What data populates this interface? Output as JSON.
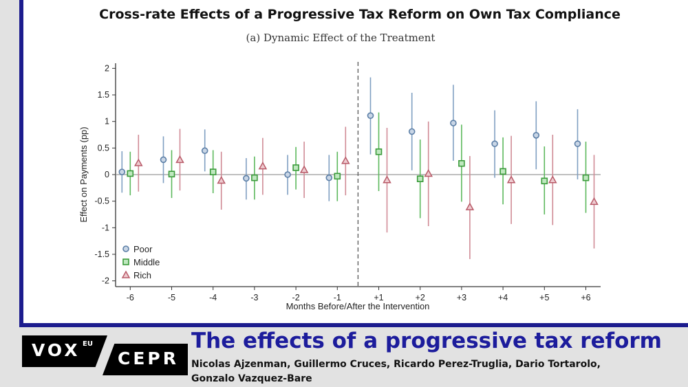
{
  "header": {
    "title": "Cross-rate Effects of a Progressive Tax Reform on Own Tax Compliance",
    "subtitle": "(a) Dynamic Effect of the Treatment"
  },
  "footer": {
    "logo_vox": "VOX",
    "logo_eu": "EU",
    "logo_cepr": "CEPR",
    "title": "The effects of a progressive tax reform",
    "authors": "Nicolas Ajzenman, Guillermo Cruces, Ricardo Perez-Truglia, Dario Tortarolo, Gonzalo Vazquez-Bare"
  },
  "colors": {
    "border": "#1c1c8e",
    "footer_title": "#1c1c9c",
    "poor": "#5b7ea6",
    "middle": "#3a9a3a",
    "rich": "#b85a68"
  },
  "chart_data": {
    "type": "scatter",
    "title": "Cross-rate Effects of a Progressive Tax Reform on Own Tax Compliance",
    "subtitle": "(a) Dynamic Effect of the Treatment",
    "xlabel": "Months Before/After the Intervention",
    "ylabel": "Effect on Payments (pp)",
    "categories": [
      "-6",
      "-5",
      "-4",
      "-3",
      "-2",
      "-1",
      "+1",
      "+2",
      "+3",
      "+4",
      "+5",
      "+6"
    ],
    "yticks": [
      "2",
      "1.5",
      "1",
      "0.5",
      "0",
      "-0.5",
      "-1",
      "-1.5",
      "-2"
    ],
    "ylim": [
      -2,
      2
    ],
    "reference_line_y": 0,
    "intervention_line": "between -1 and +1",
    "legend_position": "bottom-left",
    "series": [
      {
        "name": "Poor",
        "marker": "circle",
        "values": [
          0.05,
          0.28,
          0.45,
          -0.07,
          0.0,
          -0.06,
          1.11,
          0.81,
          0.97,
          0.58,
          0.74,
          0.58
        ],
        "ci_high": [
          0.44,
          0.72,
          0.85,
          0.31,
          0.37,
          0.37,
          1.83,
          1.54,
          1.69,
          1.21,
          1.38,
          1.23
        ],
        "ci_low": [
          -0.34,
          -0.16,
          0.06,
          -0.47,
          -0.38,
          -0.5,
          0.38,
          0.08,
          0.26,
          -0.06,
          0.1,
          -0.09
        ]
      },
      {
        "name": "Middle",
        "marker": "square",
        "values": [
          0.02,
          0.01,
          0.05,
          -0.06,
          0.13,
          -0.03,
          0.43,
          -0.08,
          0.21,
          0.06,
          -0.12,
          -0.06
        ],
        "ci_high": [
          0.43,
          0.46,
          0.46,
          0.34,
          0.52,
          0.43,
          1.17,
          0.66,
          0.94,
          0.7,
          0.53,
          0.62
        ],
        "ci_low": [
          -0.39,
          -0.44,
          -0.35,
          -0.47,
          -0.28,
          -0.5,
          -0.31,
          -0.82,
          -0.51,
          -0.56,
          -0.75,
          -0.72
        ]
      },
      {
        "name": "Rich",
        "marker": "triangle",
        "values": [
          0.22,
          0.28,
          -0.11,
          0.16,
          0.09,
          0.26,
          -0.1,
          0.02,
          -0.61,
          -0.1,
          -0.1,
          -0.51
        ],
        "ci_high": [
          0.75,
          0.86,
          0.43,
          0.69,
          0.62,
          0.9,
          0.88,
          1.0,
          0.35,
          0.73,
          0.75,
          0.37
        ],
        "ci_low": [
          -0.32,
          -0.3,
          -0.66,
          -0.38,
          -0.44,
          -0.39,
          -1.09,
          -0.97,
          -1.59,
          -0.93,
          -0.95,
          -1.39
        ]
      }
    ]
  }
}
